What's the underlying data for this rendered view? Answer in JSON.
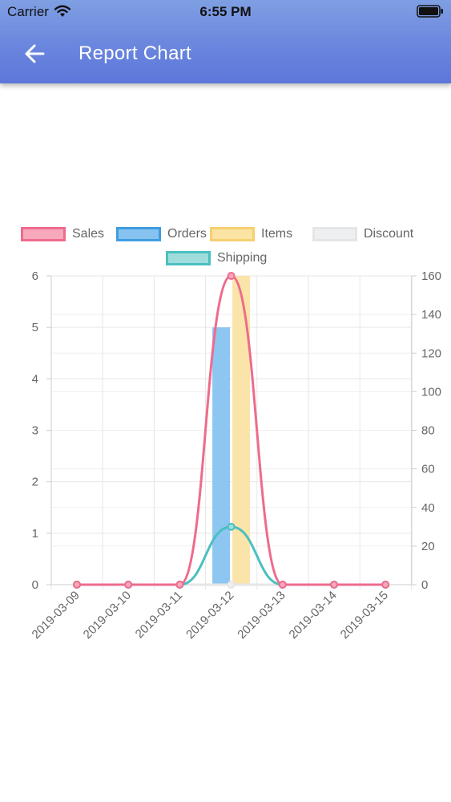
{
  "status_bar": {
    "carrier": "Carrier",
    "time": "6:55 PM"
  },
  "header": {
    "title": "Report Chart",
    "back_icon": "arrow-left-icon",
    "background": "#6a86de"
  },
  "chart_data": {
    "type": "bar",
    "categories": [
      "2019-03-09",
      "2019-03-10",
      "2019-03-11",
      "2019-03-12",
      "2019-03-13",
      "2019-03-14",
      "2019-03-15"
    ],
    "series": [
      {
        "name": "Sales",
        "kind": "line",
        "axis": "right",
        "color": "#ee6b8d",
        "fill": "#f7a9bb",
        "values": [
          0,
          0,
          0,
          160,
          0,
          0,
          0
        ]
      },
      {
        "name": "Orders",
        "kind": "bar",
        "axis": "left",
        "color": "#3f9de0",
        "fill": "#87c3f0",
        "values": [
          0,
          0,
          0,
          5,
          0,
          0,
          0
        ]
      },
      {
        "name": "Items",
        "kind": "bar",
        "axis": "left",
        "color": "#f6cf6f",
        "fill": "#fbe3a4",
        "values": [
          0,
          0,
          0,
          6,
          0,
          0,
          0
        ]
      },
      {
        "name": "Discount",
        "kind": "line",
        "axis": "right",
        "color": "#e4e5e7",
        "fill": "#eeeff1",
        "values": [
          0,
          0,
          0,
          0,
          0,
          0,
          0
        ]
      },
      {
        "name": "Shipping",
        "kind": "line",
        "axis": "right",
        "color": "#4bbfc0",
        "fill": "#9fdcdc",
        "values": [
          0,
          0,
          0,
          30,
          0,
          0,
          0
        ]
      }
    ],
    "y_left": {
      "min": 0,
      "max": 6,
      "ticks": [
        "0",
        "1",
        "2",
        "3",
        "4",
        "5",
        "6"
      ]
    },
    "y_right": {
      "min": 0,
      "max": 160,
      "ticks": [
        "0",
        "20",
        "40",
        "60",
        "80",
        "100",
        "120",
        "140",
        "160"
      ]
    },
    "grid": true,
    "legend_position": "top"
  }
}
